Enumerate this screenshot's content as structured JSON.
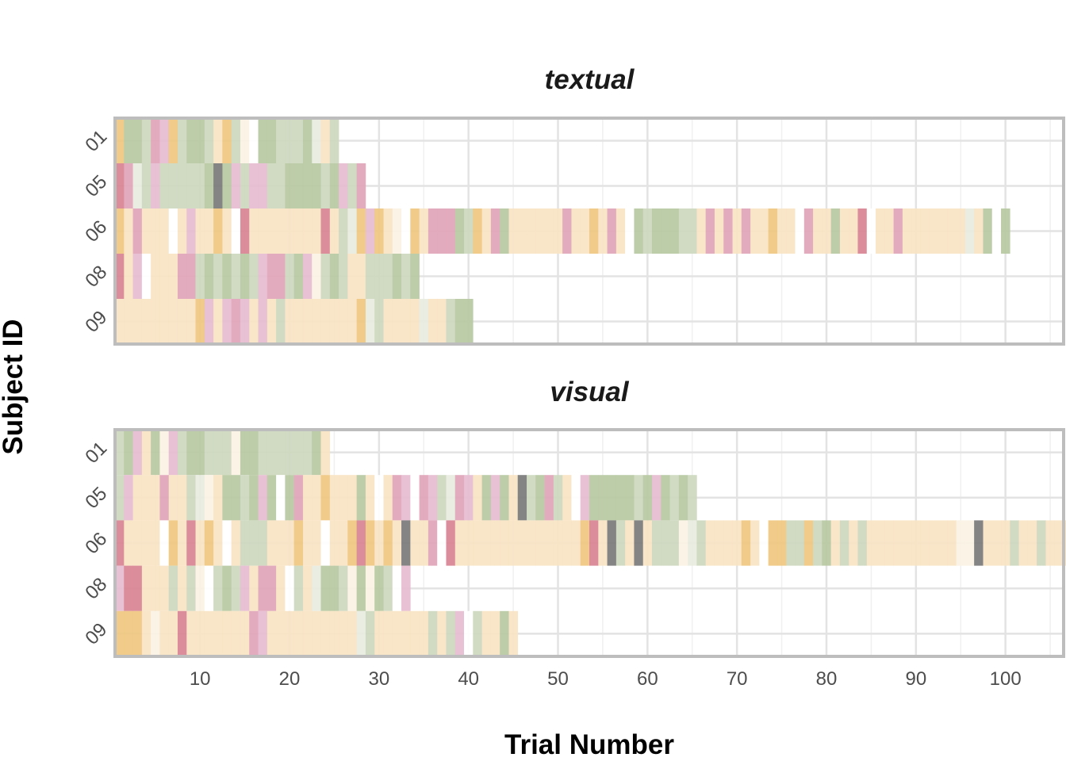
{
  "chart_data": {
    "type": "heatmap",
    "xlabel": "Trial Number",
    "ylabel": "Subject ID",
    "xlim": [
      0.5,
      106.5
    ],
    "x_ticks": [
      10,
      20,
      30,
      40,
      50,
      60,
      70,
      80,
      90,
      100
    ],
    "subjects": [
      "01",
      "05",
      "06",
      "08",
      "09"
    ],
    "grid": true,
    "legend": "none",
    "palette": {
      "a": "#f9e3c3",
      "b": "#efc77f",
      "c": "#cdd8bf",
      "d": "#b9c9a2",
      "e": "#e1a5b8",
      "f": "#e6bcd0",
      "g": "#d98392",
      "h": "#7a7a7a",
      "w": "#fbf3e4",
      "v": "#e8ecdf",
      "x": "#ffffff"
    },
    "panels": [
      {
        "title": "textual",
        "rows": [
          {
            "subject": "01",
            "trials": "bddcefbcddcabcwxddcccdvac"
          },
          {
            "subject": "05",
            "trials": "gevcfcccccdhdfcffccddddcdfce"
          },
          {
            "subject": "06",
            "trials": "baeaaaxafaabaxgaaaaaaaagacvbfbawxbaeeedcbaedaaaaaaeaabaeaxdcdddccaeaeaeaabaaxeaadaagxaaeaaaaaaavadxd"
          },
          {
            "subject": "08",
            "trials": "gafxaaaeecdcdcdcfeecdfwcdcaacccdcd"
          },
          {
            "subject": "09",
            "trials": "aaaaaaaaabfafefafacaaaaaaaabvcaaaavaacdd"
          }
        ]
      },
      {
        "title": "visual",
        "rows": [
          {
            "subject": "01",
            "trials": "cdfadwfcddcccwddccccccda"
          },
          {
            "subject": "05",
            "trials": "cfaaaeaacvwaddcdfdxdeaabaaadaxaefxefcvefadfdahcdecaxfdddddcdfdcdc"
          },
          {
            "subject": "06",
            "trials": "gaaaaxbagabaxacccaaabaaxaabgbabahaaexgaaaaaaaaaaaaaabgahcahacccwvcaaaabaxbbccbcdacacaaaaaaaaaawwhaaacaacaaacawad"
          },
          {
            "subject": "08",
            "trials": "fggaaacacwxcdcfaeeaxcavddcwdwdcxf"
          },
          {
            "subject": "09",
            "trials": "bbbawaagaaaaaaaefaaaaaaaaaavcaaaaaacacfxcaada"
          }
        ]
      }
    ]
  }
}
